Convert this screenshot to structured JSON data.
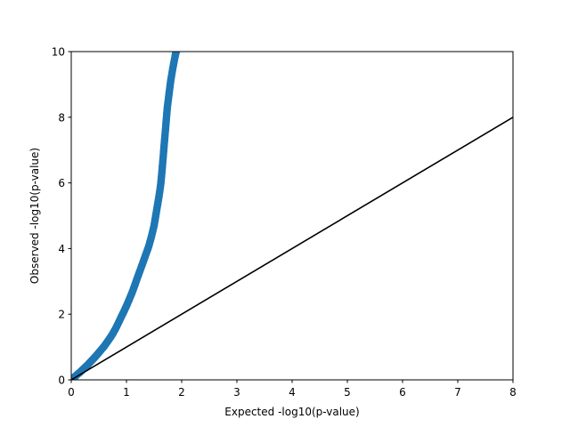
{
  "chart_data": {
    "type": "scatter",
    "title": "",
    "xlabel": "Expected -log10(p-value)",
    "ylabel": "Observed -log10(p-value)",
    "xlim": [
      0,
      8
    ],
    "ylim": [
      0,
      10
    ],
    "xticks": [
      "0",
      "1",
      "2",
      "3",
      "4",
      "5",
      "6",
      "7",
      "8"
    ],
    "yticks": [
      "0",
      "2",
      "4",
      "6",
      "8",
      "10"
    ],
    "grid": false,
    "series": [
      {
        "kind": "scatter",
        "color": "#1f77b4",
        "points": [
          [
            0.0,
            0.0
          ],
          [
            0.05,
            0.07
          ],
          [
            0.1,
            0.15
          ],
          [
            0.15,
            0.22
          ],
          [
            0.2,
            0.3
          ],
          [
            0.25,
            0.38
          ],
          [
            0.3,
            0.46
          ],
          [
            0.35,
            0.55
          ],
          [
            0.4,
            0.64
          ],
          [
            0.45,
            0.73
          ],
          [
            0.5,
            0.83
          ],
          [
            0.55,
            0.93
          ],
          [
            0.6,
            1.03
          ],
          [
            0.65,
            1.15
          ],
          [
            0.7,
            1.27
          ],
          [
            0.75,
            1.4
          ],
          [
            0.8,
            1.55
          ],
          [
            0.85,
            1.72
          ],
          [
            0.9,
            1.9
          ],
          [
            0.95,
            2.07
          ],
          [
            1.0,
            2.25
          ],
          [
            1.05,
            2.45
          ],
          [
            1.1,
            2.65
          ],
          [
            1.15,
            2.88
          ],
          [
            1.2,
            3.12
          ],
          [
            1.25,
            3.35
          ],
          [
            1.3,
            3.58
          ],
          [
            1.35,
            3.82
          ],
          [
            1.4,
            4.05
          ],
          [
            1.45,
            4.35
          ],
          [
            1.5,
            4.7
          ],
          [
            1.53,
            5.0
          ],
          [
            1.56,
            5.3
          ],
          [
            1.59,
            5.6
          ],
          [
            1.62,
            5.95
          ],
          [
            1.64,
            6.3
          ],
          [
            1.66,
            6.7
          ],
          [
            1.68,
            7.1
          ],
          [
            1.7,
            7.5
          ],
          [
            1.72,
            7.9
          ],
          [
            1.74,
            8.3
          ],
          [
            1.77,
            8.7
          ],
          [
            1.8,
            9.1
          ],
          [
            1.84,
            9.5
          ],
          [
            1.88,
            9.85
          ],
          [
            1.9,
            10.0
          ]
        ]
      },
      {
        "kind": "line",
        "color": "#000000",
        "points": [
          [
            0,
            0
          ],
          [
            8,
            8
          ]
        ]
      }
    ]
  }
}
